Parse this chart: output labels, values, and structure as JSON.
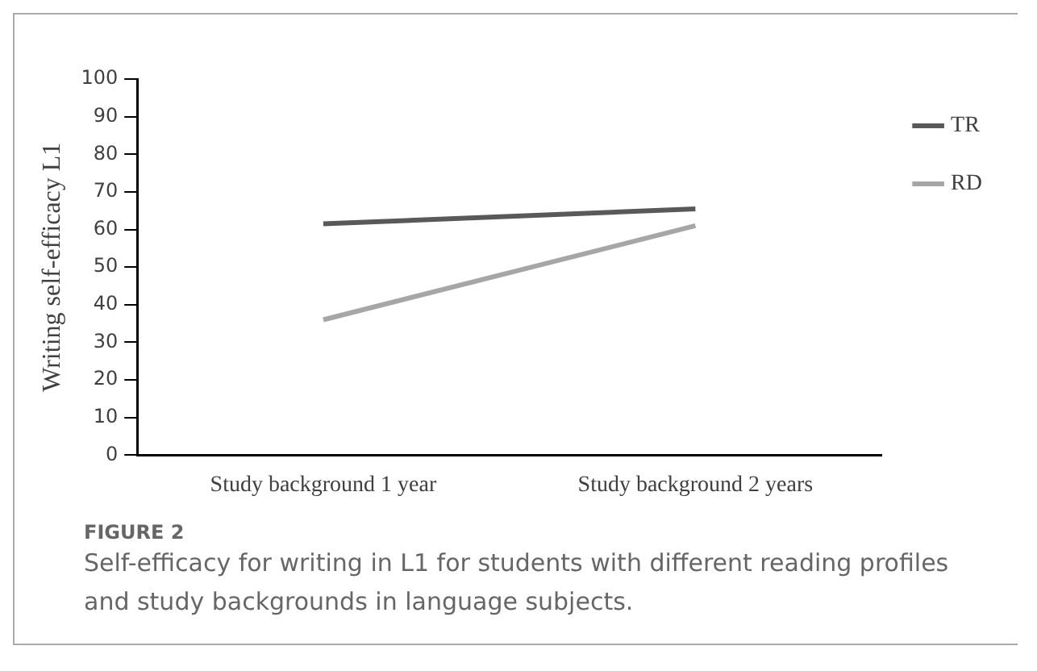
{
  "chart_data": {
    "type": "line",
    "title": "FIGURE 2",
    "annotations": [
      "Self-efficacy for writing in L1 for students with different reading profiles and study backgrounds in language subjects."
    ],
    "ylabel": "Writing self-efficacy L1",
    "categories": [
      "Study background 1 year",
      "Study background 2 years"
    ],
    "series": [
      {
        "name": "TR",
        "color": "#595959",
        "values": [
          61.5,
          65.5
        ]
      },
      {
        "name": "RD",
        "color": "#a6a6a6",
        "values": [
          36,
          61
        ]
      }
    ],
    "ylim": [
      0,
      100
    ],
    "yticks": [
      0,
      10,
      20,
      30,
      40,
      50,
      60,
      70,
      80,
      90,
      100
    ],
    "grid": false,
    "legend": "right",
    "marker": "none"
  }
}
